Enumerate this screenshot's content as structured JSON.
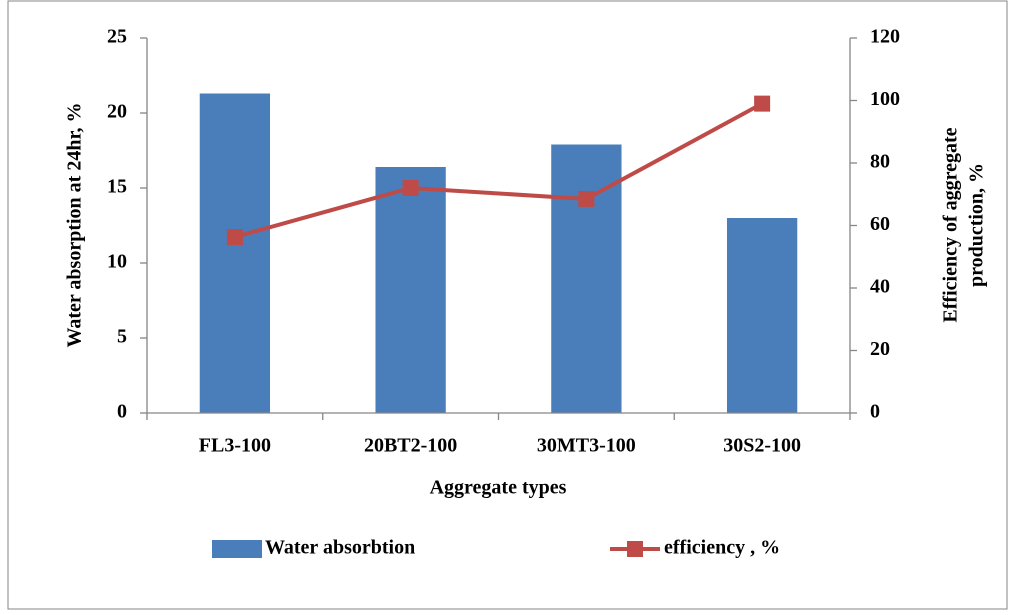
{
  "chart_data": {
    "type": "bar",
    "xlabel": "Aggregate types",
    "ylabel": "Water absorption at 24hr, %",
    "y2label": [
      "Efficiency of aggregate",
      "production, %"
    ],
    "categories": [
      "FL3-100",
      "20BT2-100",
      "30MT3-100",
      "30S2-100"
    ],
    "series": [
      {
        "name": "Water absorbtion",
        "type": "bar",
        "color": "#4a7ebb",
        "values": [
          21.3,
          16.4,
          17.9,
          13.0
        ]
      },
      {
        "name": "efficiency , %",
        "type": "line",
        "axis": "y2",
        "color": "#be4b48",
        "values": [
          56.3,
          72,
          68.5,
          99
        ]
      }
    ],
    "ylim": [
      0,
      25
    ],
    "yticks": [
      0,
      5,
      10,
      15,
      20,
      25
    ],
    "y2lim": [
      0,
      120
    ],
    "y2ticks": [
      0,
      20,
      40,
      60,
      80,
      100,
      120
    ],
    "legend": "bottom",
    "grid": false
  }
}
